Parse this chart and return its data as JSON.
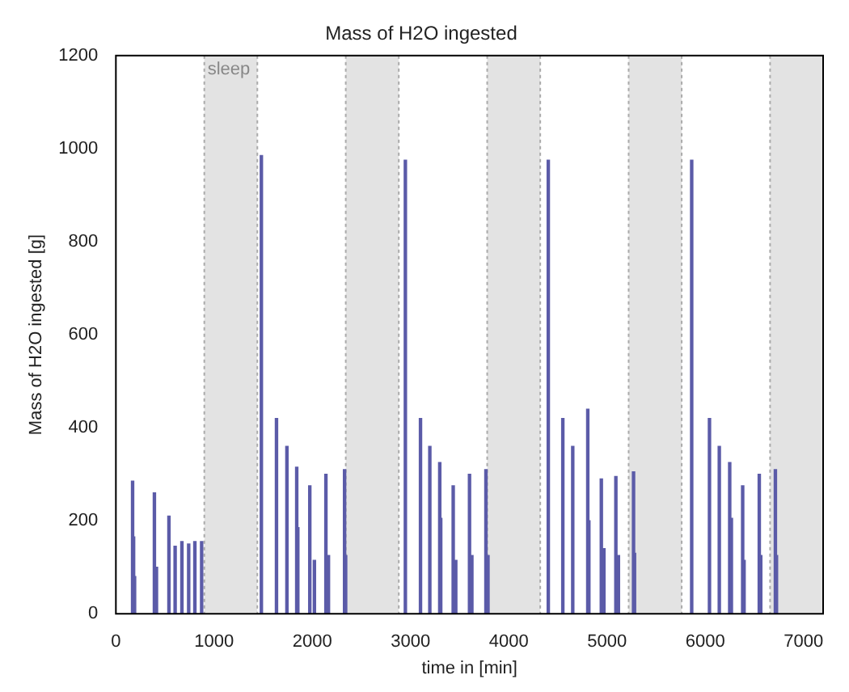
{
  "chart_data": {
    "type": "bar",
    "title": "Mass of H2O ingested",
    "xlabel": "time in [min]",
    "ylabel": "Mass of H2O ingested [g]",
    "x": [
      170,
      180,
      190,
      392,
      413,
      540,
      603,
      672,
      741,
      804,
      873,
      1481,
      1635,
      1741,
      1841,
      1852,
      1974,
      2021,
      2138,
      2164,
      2328,
      2339,
      2947,
      3101,
      3196,
      3297,
      3307,
      3434,
      3460,
      3600,
      3624,
      3767,
      3788,
      4402,
      4550,
      4651,
      4804,
      4815,
      4942,
      4968,
      5090,
      5116,
      5270,
      5280,
      5862,
      6043,
      6143,
      6249,
      6266,
      6381,
      6395,
      6550,
      6565,
      6714,
      6725
    ],
    "values": [
      285,
      165,
      80,
      260,
      100,
      210,
      145,
      155,
      150,
      155,
      155,
      985,
      420,
      360,
      315,
      185,
      275,
      115,
      300,
      125,
      310,
      125,
      975,
      420,
      360,
      325,
      205,
      275,
      115,
      300,
      125,
      310,
      125,
      975,
      420,
      360,
      440,
      200,
      290,
      140,
      295,
      125,
      305,
      130,
      975,
      420,
      360,
      325,
      205,
      275,
      115,
      300,
      125,
      310,
      125
    ],
    "color": "#5b5ba8",
    "xlim": [
      0,
      7200
    ],
    "xticks": [
      0,
      1000,
      2000,
      3000,
      4000,
      5000,
      6000,
      7000
    ],
    "ylim": [
      0,
      1200
    ],
    "yticks": [
      0,
      200,
      400,
      600,
      800,
      1000,
      1200
    ],
    "bands": [
      {
        "axis": "x",
        "from": 900,
        "to": 1440,
        "label": "sleep",
        "color": "#e3e3e3"
      },
      {
        "axis": "x",
        "from": 2340,
        "to": 2880,
        "color": "#e3e3e3"
      },
      {
        "axis": "x",
        "from": 3780,
        "to": 4320,
        "color": "#e3e3e3"
      },
      {
        "axis": "x",
        "from": 5220,
        "to": 5760,
        "color": "#e3e3e3"
      },
      {
        "axis": "x",
        "from": 6660,
        "to": 7200,
        "color": "#e3e3e3"
      }
    ],
    "grid": false,
    "legend": false
  }
}
